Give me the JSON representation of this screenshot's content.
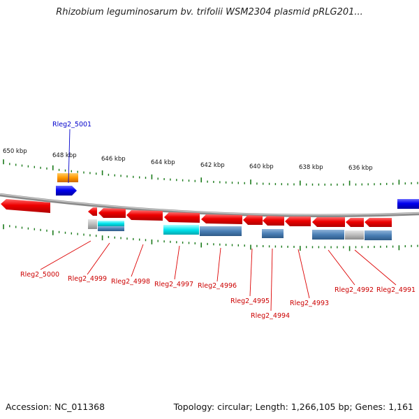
{
  "title": "Rhizobium leguminosarum bv. trifolii WSM2304 plasmid pRLG201...",
  "footer": {
    "accession": "Accession: NC_011368",
    "summary": "Topology: circular; Length: 1,266,105 bp; Genes: 1,161"
  },
  "colors": {
    "red_gene": "#ee0000",
    "blue_gene": "#0000ee",
    "orange_gene": "#ff9900",
    "cyan_bar": "#00e5ee",
    "steel_bar": "#4a7fb5",
    "gray_bar": "#bbbbbb",
    "tick_green": "#1a7a1a",
    "label_red": "#cc0000",
    "label_blue": "#0000cc"
  },
  "scale_ticks": [
    "650 kbp",
    "648 kbp",
    "646 kbp",
    "644 kbp",
    "642 kbp",
    "640 kbp",
    "638 kbp",
    "636 kbp"
  ],
  "gene_labels": [
    {
      "id": "rleg2-5001",
      "text": "Rleg2_5001",
      "strand": "top"
    },
    {
      "id": "rleg2-5000",
      "text": "Rleg2_5000",
      "strand": "bottom"
    },
    {
      "id": "rleg2-4999",
      "text": "Rleg2_4999",
      "strand": "bottom"
    },
    {
      "id": "rleg2-4998",
      "text": "Rleg2_4998",
      "strand": "bottom"
    },
    {
      "id": "rleg2-4997",
      "text": "Rleg2_4997",
      "strand": "bottom"
    },
    {
      "id": "rleg2-4996",
      "text": "Rleg2_4996",
      "strand": "bottom"
    },
    {
      "id": "rleg2-4995",
      "text": "Rleg2_4995",
      "strand": "bottom"
    },
    {
      "id": "rleg2-4994",
      "text": "Rleg2_4994",
      "strand": "bottom"
    },
    {
      "id": "rleg2-4993",
      "text": "Rleg2_4993",
      "strand": "bottom"
    },
    {
      "id": "rleg2-4992",
      "text": "Rleg2_4992",
      "strand": "bottom"
    },
    {
      "id": "rleg2-4991",
      "text": "Rleg2_4991",
      "strand": "bottom"
    }
  ]
}
